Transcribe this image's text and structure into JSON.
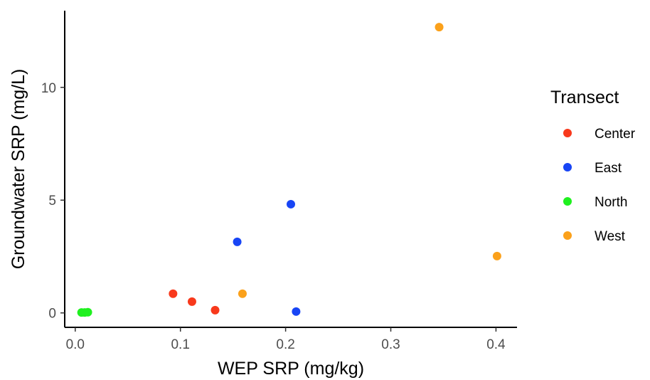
{
  "chart_data": {
    "type": "scatter",
    "xlabel": "WEP SRP (mg/kg)",
    "ylabel": "Groundwater SRP (mg/L)",
    "xlim": [
      -0.01,
      0.42
    ],
    "ylim": [
      -0.64,
      13.4
    ],
    "x_ticks": [
      0.0,
      0.1,
      0.2,
      0.3,
      0.4
    ],
    "x_tick_labels": [
      "0.0",
      "0.1",
      "0.2",
      "0.3",
      "0.4"
    ],
    "y_ticks": [
      0,
      5,
      10
    ],
    "y_tick_labels": [
      "0",
      "5",
      "10"
    ],
    "grid": false,
    "legend": {
      "title": "Transect",
      "position": "right"
    },
    "series": [
      {
        "name": "Center",
        "color": "#f8391c",
        "points": [
          [
            0.093,
            0.85
          ],
          [
            0.111,
            0.5
          ],
          [
            0.133,
            0.12
          ]
        ]
      },
      {
        "name": "East",
        "color": "#1845f5",
        "points": [
          [
            0.154,
            3.15
          ],
          [
            0.205,
            4.82
          ],
          [
            0.21,
            0.06
          ]
        ]
      },
      {
        "name": "North",
        "color": "#1ff01f",
        "points": [
          [
            0.006,
            0.02
          ],
          [
            0.009,
            0.02
          ],
          [
            0.012,
            0.03
          ]
        ]
      },
      {
        "name": "West",
        "color": "#fba11b",
        "points": [
          [
            0.159,
            0.85
          ],
          [
            0.346,
            12.67
          ],
          [
            0.401,
            2.52
          ]
        ]
      }
    ]
  }
}
